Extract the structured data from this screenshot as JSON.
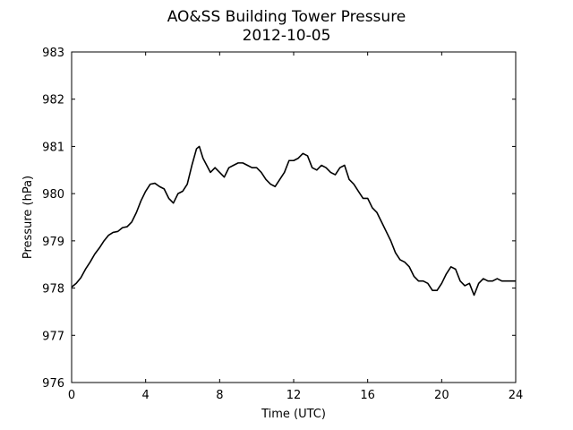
{
  "chart_data": {
    "type": "line",
    "title": "AO&SS Building Tower Pressure",
    "subtitle": "2012-10-05",
    "xlabel": "Time (UTC)",
    "ylabel": "Pressure (hPa)",
    "xlim": [
      0,
      24
    ],
    "ylim": [
      976,
      983
    ],
    "xticks": [
      0,
      4,
      8,
      12,
      16,
      20,
      24
    ],
    "yticks": [
      976,
      977,
      978,
      979,
      980,
      981,
      982,
      983
    ],
    "grid": false,
    "colors": {
      "line": "#000000",
      "axes": "#000000",
      "background": "#ffffff"
    },
    "series": [
      {
        "x": [
          0,
          0.25,
          0.5,
          0.75,
          1,
          1.25,
          1.5,
          1.75,
          2,
          2.25,
          2.5,
          2.75,
          3,
          3.25,
          3.5,
          3.75,
          4,
          4.25,
          4.5,
          4.75,
          5,
          5.25,
          5.5,
          5.75,
          6,
          6.25,
          6.5,
          6.75,
          6.9,
          7.1,
          7.3,
          7.5,
          7.75,
          8,
          8.25,
          8.5,
          8.75,
          9,
          9.25,
          9.5,
          9.75,
          10,
          10.25,
          10.5,
          10.75,
          11,
          11.25,
          11.5,
          11.75,
          12,
          12.25,
          12.5,
          12.75,
          13,
          13.25,
          13.5,
          13.75,
          14,
          14.25,
          14.5,
          14.75,
          15,
          15.25,
          15.5,
          15.75,
          16,
          16.25,
          16.5,
          16.75,
          17,
          17.25,
          17.5,
          17.75,
          18,
          18.25,
          18.5,
          18.75,
          19,
          19.25,
          19.5,
          19.75,
          20,
          20.25,
          20.5,
          20.75,
          21,
          21.25,
          21.5,
          21.75,
          22,
          22.25,
          22.5,
          22.75,
          23,
          23.25,
          23.5,
          23.75,
          24
        ],
        "y": [
          978.02,
          978.1,
          978.22,
          978.4,
          978.55,
          978.72,
          978.85,
          979.0,
          979.12,
          979.18,
          979.2,
          979.28,
          979.3,
          979.4,
          979.6,
          979.85,
          980.05,
          980.2,
          980.22,
          980.15,
          980.1,
          979.9,
          979.8,
          980.0,
          980.05,
          980.2,
          980.6,
          980.95,
          981.0,
          980.75,
          980.6,
          980.45,
          980.55,
          980.45,
          980.35,
          980.55,
          980.6,
          980.65,
          980.65,
          980.6,
          980.55,
          980.55,
          980.45,
          980.3,
          980.2,
          980.15,
          980.3,
          980.45,
          980.7,
          980.7,
          980.75,
          980.85,
          980.8,
          980.55,
          980.5,
          980.6,
          980.55,
          980.45,
          980.4,
          980.55,
          980.6,
          980.3,
          980.2,
          980.05,
          979.9,
          979.9,
          979.7,
          979.6,
          979.4,
          979.2,
          979.0,
          978.75,
          978.6,
          978.55,
          978.45,
          978.25,
          978.15,
          978.15,
          978.1,
          977.95,
          977.95,
          978.1,
          978.3,
          978.45,
          978.4,
          978.15,
          978.05,
          978.1,
          977.85,
          978.1,
          978.2,
          978.15,
          978.15,
          978.2,
          978.15,
          978.15,
          978.15,
          978.15
        ]
      }
    ]
  }
}
